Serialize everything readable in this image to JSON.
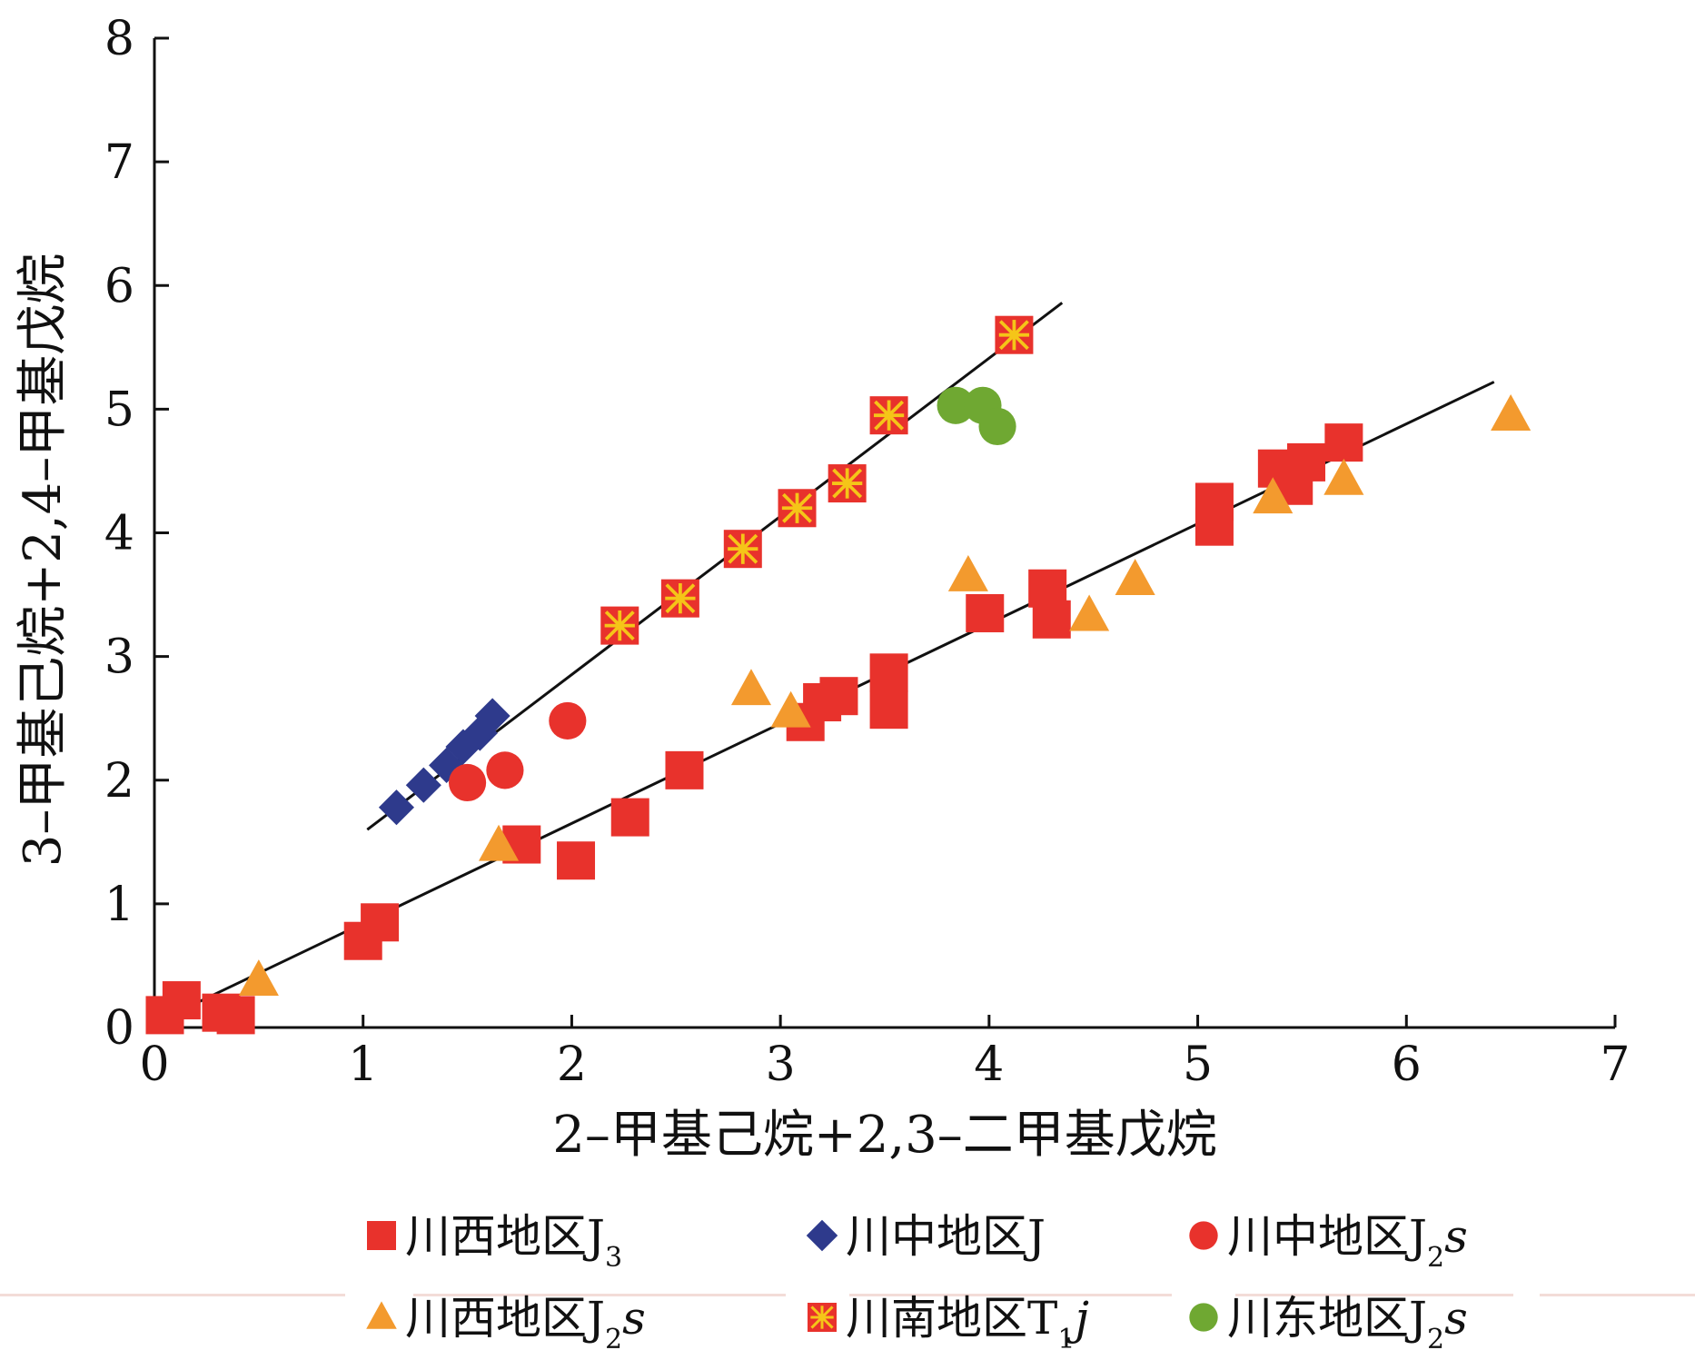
{
  "chart_data": {
    "type": "scatter",
    "title": "",
    "xlabel": "2–甲基己烷+2,3–二甲基戊烷",
    "ylabel": "3–甲基己烷+2,4–甲基戊烷",
    "xlim": [
      0,
      7
    ],
    "ylim": [
      0,
      8
    ],
    "xticks": [
      "0",
      "1",
      "2",
      "3",
      "4",
      "5",
      "6",
      "7"
    ],
    "yticks": [
      "0",
      "1",
      "2",
      "3",
      "4",
      "5",
      "6",
      "7",
      "8"
    ],
    "grid": false,
    "legend_position": "bottom",
    "series": [
      {
        "name": "川西地区J3",
        "legend": {
          "main": "川西地区J",
          "sub": "3",
          "tail": ""
        },
        "marker": "square",
        "color": "#e8322c",
        "x": [
          0.05,
          0.13,
          0.32,
          0.39,
          1.0,
          1.08,
          1.76,
          2.02,
          2.28,
          2.54,
          3.12,
          3.2,
          3.28,
          3.52,
          3.52,
          3.98,
          4.28,
          4.3,
          5.08,
          5.08,
          5.38,
          5.46,
          5.52,
          5.7
        ],
        "y": [
          0.1,
          0.22,
          0.12,
          0.1,
          0.7,
          0.85,
          1.48,
          1.35,
          1.7,
          2.08,
          2.47,
          2.63,
          2.68,
          2.57,
          2.87,
          3.35,
          3.55,
          3.3,
          4.05,
          4.25,
          4.52,
          4.38,
          4.57,
          4.73
        ]
      },
      {
        "name": "川中地区J",
        "legend": {
          "main": "川中地区J",
          "sub": "",
          "tail": ""
        },
        "marker": "diamond",
        "color": "#2e3a8c",
        "x": [
          1.16,
          1.29,
          1.4,
          1.48,
          1.56,
          1.62
        ],
        "y": [
          1.78,
          1.96,
          2.12,
          2.27,
          2.38,
          2.52
        ]
      },
      {
        "name": "川中地区J2s",
        "legend": {
          "main": "川中地区J",
          "sub": "2",
          "tail": "s"
        },
        "marker": "circle",
        "color": "#e8322c",
        "x": [
          1.5,
          1.68,
          1.98
        ],
        "y": [
          1.98,
          2.08,
          2.48
        ]
      },
      {
        "name": "川西地区J2s",
        "legend": {
          "main": "川西地区J",
          "sub": "2",
          "tail": "s"
        },
        "marker": "triangle",
        "color": "#f39a2e",
        "x": [
          0.5,
          1.65,
          2.86,
          3.05,
          3.9,
          4.48,
          4.7,
          5.36,
          5.7,
          6.5
        ],
        "y": [
          0.38,
          1.47,
          2.73,
          2.55,
          3.65,
          3.33,
          3.62,
          4.28,
          4.43,
          4.95
        ]
      },
      {
        "name": "川南地区T1j",
        "legend": {
          "main": "川南地区T",
          "sub": "1",
          "tail": "j"
        },
        "marker": "square-star",
        "color": "#e8322c",
        "x": [
          2.23,
          2.52,
          2.82,
          3.08,
          3.32,
          3.52,
          4.12
        ],
        "y": [
          3.25,
          3.47,
          3.87,
          4.2,
          4.4,
          4.95,
          5.6
        ]
      },
      {
        "name": "川东地区J2s",
        "legend": {
          "main": "川东地区J",
          "sub": "2",
          "tail": "s"
        },
        "marker": "circle",
        "color": "#6fa832",
        "x": [
          3.84,
          3.97,
          4.04
        ],
        "y": [
          5.03,
          5.03,
          4.86
        ]
      }
    ],
    "trendlines": [
      {
        "x": [
          1.02,
          4.35
        ],
        "y": [
          1.6,
          5.86
        ]
      },
      {
        "x": [
          0.08,
          6.42
        ],
        "y": [
          0.1,
          5.22
        ]
      }
    ]
  }
}
